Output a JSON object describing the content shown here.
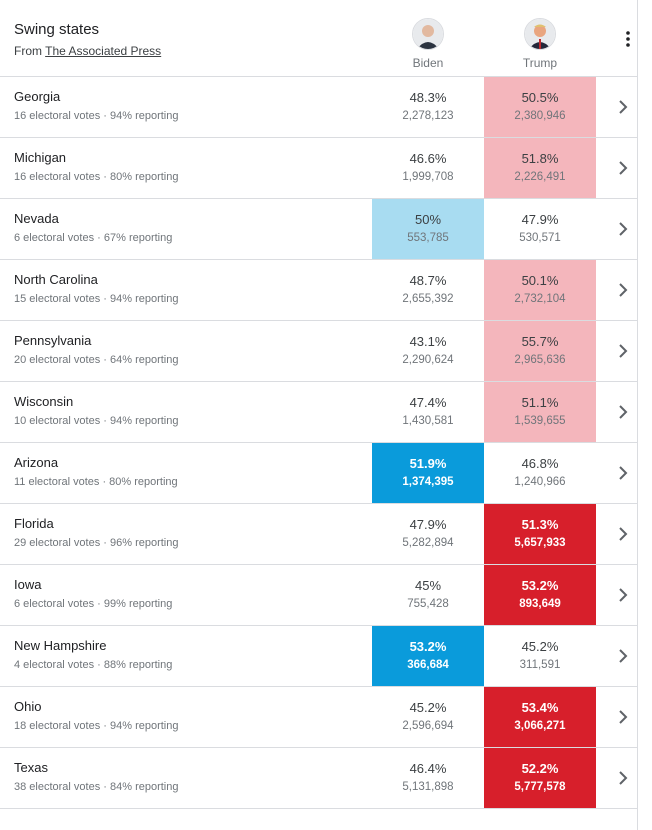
{
  "header": {
    "title": "Swing states",
    "source_prefix": "From",
    "source": "The Associated Press",
    "candidates": [
      "Biden",
      "Trump"
    ]
  },
  "rows": [
    {
      "state": "Georgia",
      "detail": "16 electoral votes · 94% reporting",
      "biden_pct": "48.3%",
      "biden_votes": "2,278,123",
      "trump_pct": "50.5%",
      "trump_votes": "2,380,946",
      "biden_fill": null,
      "trump_fill": "#f4b6bc",
      "called": false
    },
    {
      "state": "Michigan",
      "detail": "16 electoral votes · 80% reporting",
      "biden_pct": "46.6%",
      "biden_votes": "1,999,708",
      "trump_pct": "51.8%",
      "trump_votes": "2,226,491",
      "biden_fill": null,
      "trump_fill": "#f4b6bc",
      "called": false
    },
    {
      "state": "Nevada",
      "detail": "6 electoral votes · 67% reporting",
      "biden_pct": "50%",
      "biden_votes": "553,785",
      "trump_pct": "47.9%",
      "trump_votes": "530,571",
      "biden_fill": "#a8dcf1",
      "trump_fill": null,
      "called": false
    },
    {
      "state": "North Carolina",
      "detail": "15 electoral votes · 94% reporting",
      "biden_pct": "48.7%",
      "biden_votes": "2,655,392",
      "trump_pct": "50.1%",
      "trump_votes": "2,732,104",
      "biden_fill": null,
      "trump_fill": "#f4b6bc",
      "called": false
    },
    {
      "state": "Pennsylvania",
      "detail": "20 electoral votes · 64% reporting",
      "biden_pct": "43.1%",
      "biden_votes": "2,290,624",
      "trump_pct": "55.7%",
      "trump_votes": "2,965,636",
      "biden_fill": null,
      "trump_fill": "#f4b6bc",
      "called": false
    },
    {
      "state": "Wisconsin",
      "detail": "10 electoral votes · 94% reporting",
      "biden_pct": "47.4%",
      "biden_votes": "1,430,581",
      "trump_pct": "51.1%",
      "trump_votes": "1,539,655",
      "biden_fill": null,
      "trump_fill": "#f4b6bc",
      "called": false
    },
    {
      "state": "Arizona",
      "detail": "11 electoral votes · 80% reporting",
      "biden_pct": "51.9%",
      "biden_votes": "1,374,395",
      "trump_pct": "46.8%",
      "trump_votes": "1,240,966",
      "biden_fill": "#0a9bdb",
      "trump_fill": null,
      "called": true
    },
    {
      "state": "Florida",
      "detail": "29 electoral votes · 96% reporting",
      "biden_pct": "47.9%",
      "biden_votes": "5,282,894",
      "trump_pct": "51.3%",
      "trump_votes": "5,657,933",
      "biden_fill": null,
      "trump_fill": "#d71f2b",
      "called": true
    },
    {
      "state": "Iowa",
      "detail": "6 electoral votes · 99% reporting",
      "biden_pct": "45%",
      "biden_votes": "755,428",
      "trump_pct": "53.2%",
      "trump_votes": "893,649",
      "biden_fill": null,
      "trump_fill": "#d71f2b",
      "called": true
    },
    {
      "state": "New Hampshire",
      "detail": "4 electoral votes · 88% reporting",
      "biden_pct": "53.2%",
      "biden_votes": "366,684",
      "trump_pct": "45.2%",
      "trump_votes": "311,591",
      "biden_fill": "#0a9bdb",
      "trump_fill": null,
      "called": true
    },
    {
      "state": "Ohio",
      "detail": "18 electoral votes · 94% reporting",
      "biden_pct": "45.2%",
      "biden_votes": "2,596,694",
      "trump_pct": "53.4%",
      "trump_votes": "3,066,271",
      "biden_fill": null,
      "trump_fill": "#d71f2b",
      "called": true
    },
    {
      "state": "Texas",
      "detail": "38 electoral votes · 84% reporting",
      "biden_pct": "46.4%",
      "biden_votes": "5,131,898",
      "trump_pct": "52.2%",
      "trump_votes": "5,777,578",
      "biden_fill": null,
      "trump_fill": "#d71f2b",
      "called": true
    }
  ]
}
